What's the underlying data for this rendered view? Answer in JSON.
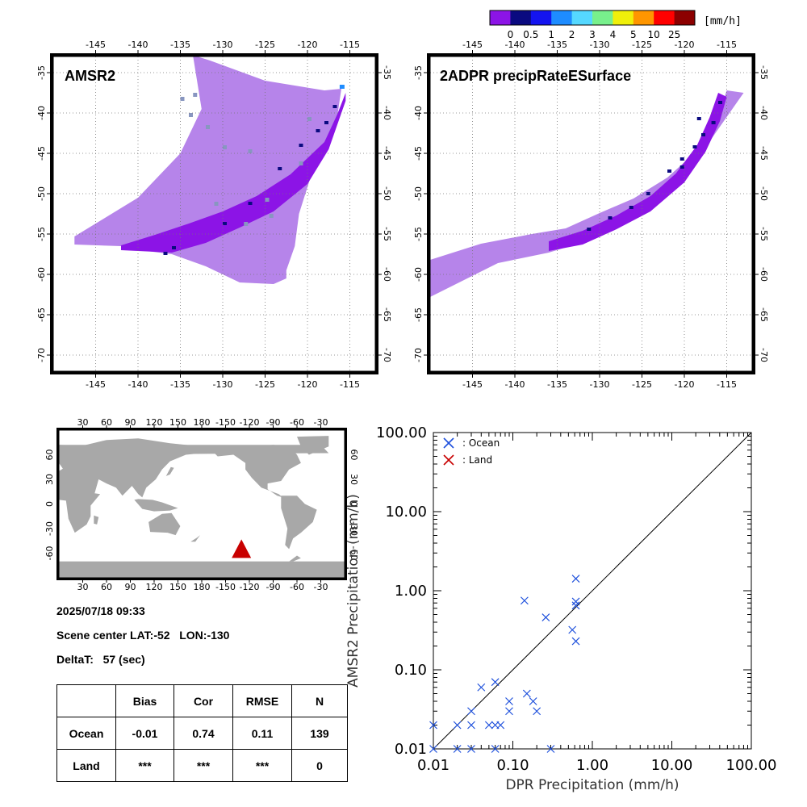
{
  "colorbar": {
    "unit": "[mm/h]",
    "ticks": [
      "0",
      "0.5",
      "1",
      "2",
      "3",
      "4",
      "5",
      "10",
      "25"
    ],
    "colors": [
      "#8c14e6",
      "#0a0a80",
      "#1414f0",
      "#1e8cff",
      "#55d8ff",
      "#78f08c",
      "#f0f00a",
      "#ff9600",
      "#ff0000",
      "#8c0000"
    ]
  },
  "map_common": {
    "lon_ticks": [
      "-145",
      "-140",
      "-135",
      "-130",
      "-125",
      "-120",
      "-115"
    ],
    "lat_ticks": [
      "-35",
      "-40",
      "-45",
      "-50",
      "-55",
      "-60",
      "-65",
      "-70"
    ],
    "light_swath_color": "#b684ea",
    "dark_swath_color": "#8c14e6",
    "gray_cell_color": "#8896c0"
  },
  "panels": {
    "amsr2_title": "AMSR2",
    "dpr_title": "2ADPR precipRateESurface"
  },
  "world_map": {
    "top_lon_ticks": [
      "30",
      "60",
      "90",
      "120",
      "150",
      "180",
      "-150",
      "-120",
      "-90",
      "-60",
      "-30"
    ],
    "bottom_lon_ticks": [
      "30",
      "60",
      "90",
      "120",
      "150",
      "180",
      "-150",
      "-120",
      "-90",
      "-60",
      "-30"
    ],
    "lat_ticks": [
      "60",
      "30",
      "0",
      "-30",
      "-60"
    ],
    "land_color": "#a8a8a8",
    "marker_color": "#c80000"
  },
  "info": {
    "datetime": "2025/07/18 09:33",
    "scene_center": "Scene center LAT:-52   LON:-130",
    "delta_t": "DeltaT:   57 (sec)"
  },
  "stats_table": {
    "headers": [
      "",
      "Bias",
      "Cor",
      "RMSE",
      "N"
    ],
    "rows": [
      [
        "Ocean",
        "-0.01",
        "0.74",
        "0.11",
        "139"
      ],
      [
        "Land",
        "***",
        "***",
        "***",
        "0"
      ]
    ]
  },
  "chart_data": {
    "type": "scatter",
    "xlabel": "DPR Precipitation (mm/h)",
    "ylabel": "AMSR2 Precipitation (mm/h)",
    "x_scale": "log",
    "y_scale": "log",
    "xlim": [
      0.01,
      100
    ],
    "ylim": [
      0.01,
      100
    ],
    "x_tick_labels": [
      "0.01",
      "0.10",
      "1.00",
      "10.00",
      "100.00"
    ],
    "y_tick_labels": [
      "0.01",
      "0.10",
      "1.00",
      "10.00",
      "100.00"
    ],
    "reference_line": "1:1",
    "legend_position": "top-left",
    "series": [
      {
        "name": ": Ocean",
        "color": "#1e50dc",
        "points": [
          [
            0.01,
            0.02
          ],
          [
            0.01,
            0.01
          ],
          [
            0.02,
            0.02
          ],
          [
            0.02,
            0.01
          ],
          [
            0.03,
            0.03
          ],
          [
            0.03,
            0.02
          ],
          [
            0.03,
            0.01
          ],
          [
            0.04,
            0.06
          ],
          [
            0.05,
            0.02
          ],
          [
            0.06,
            0.02
          ],
          [
            0.06,
            0.07
          ],
          [
            0.06,
            0.01
          ],
          [
            0.07,
            0.02
          ],
          [
            0.09,
            0.03
          ],
          [
            0.09,
            0.04
          ],
          [
            0.14,
            0.75
          ],
          [
            0.15,
            0.05
          ],
          [
            0.18,
            0.04
          ],
          [
            0.2,
            0.03
          ],
          [
            0.26,
            0.46
          ],
          [
            0.3,
            0.01
          ],
          [
            0.56,
            0.32
          ],
          [
            0.62,
            1.42
          ],
          [
            0.62,
            0.73
          ],
          [
            0.62,
            0.65
          ],
          [
            0.62,
            0.23
          ]
        ]
      },
      {
        "name": ": Land",
        "color": "#c80000",
        "points": []
      }
    ]
  }
}
